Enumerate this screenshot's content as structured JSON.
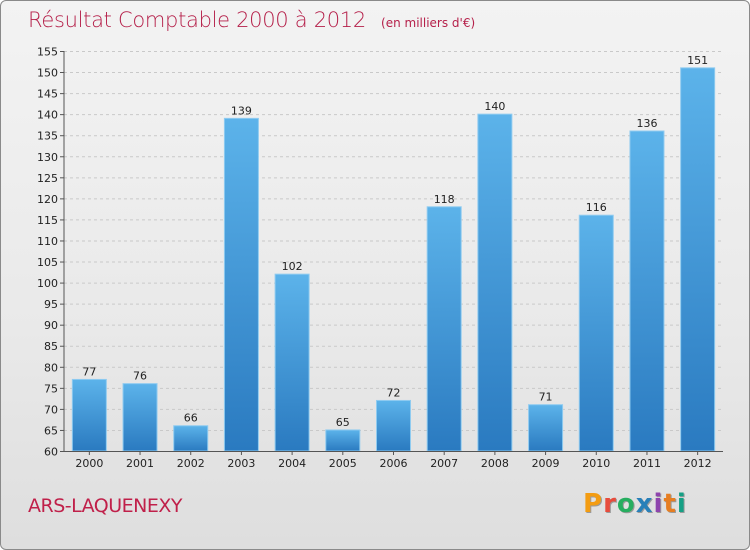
{
  "title": {
    "main": "Résultat Comptable 2000 à 2012",
    "sub": "(en milliers d'€)"
  },
  "commune": "ARS-LAQUENEXY",
  "logo": {
    "text": "Proxiti",
    "colors": [
      "#f39c12",
      "#e74c3c",
      "#27ae60",
      "#2980b9",
      "#8e44ad",
      "#e67e22",
      "#16a085"
    ]
  },
  "colors": {
    "bar_light": "#5cb3ea",
    "bar_dark": "#2a7ac0",
    "title": "#b5204a"
  },
  "chart_data": {
    "type": "bar",
    "title": "Résultat Comptable 2000 à 2012",
    "xlabel": "",
    "ylabel": "",
    "categories": [
      "2000",
      "2001",
      "2002",
      "2003",
      "2004",
      "2005",
      "2006",
      "2007",
      "2008",
      "2009",
      "2010",
      "2011",
      "2012"
    ],
    "values": [
      77,
      76,
      66,
      139,
      102,
      65,
      72,
      118,
      140,
      71,
      116,
      136,
      151
    ],
    "ylim": [
      60,
      155
    ],
    "yticks": [
      60,
      65,
      70,
      75,
      80,
      85,
      90,
      95,
      100,
      105,
      110,
      115,
      120,
      125,
      130,
      135,
      140,
      145,
      150,
      155
    ],
    "grid": true
  }
}
